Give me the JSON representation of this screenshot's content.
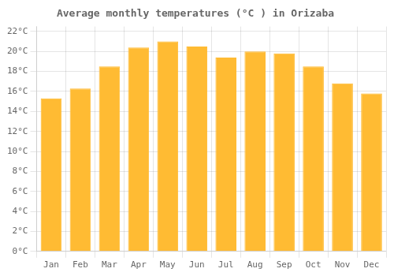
{
  "chart_data": {
    "type": "bar",
    "title": "Average monthly temperatures (°C ) in Orizaba",
    "categories": [
      "Jan",
      "Feb",
      "Mar",
      "Apr",
      "May",
      "Jun",
      "Jul",
      "Aug",
      "Sep",
      "Oct",
      "Nov",
      "Dec"
    ],
    "values": [
      15.3,
      16.3,
      18.5,
      20.4,
      21.0,
      20.5,
      19.4,
      20.0,
      19.8,
      18.5,
      16.8,
      15.8
    ],
    "color": "#FFBB33",
    "ylim": [
      0,
      22.5
    ],
    "yticks": [
      {
        "value": 0,
        "label": "0°C"
      },
      {
        "value": 2,
        "label": "2°C"
      },
      {
        "value": 4,
        "label": "4°C"
      },
      {
        "value": 6,
        "label": "6°C"
      },
      {
        "value": 8,
        "label": "8°C"
      },
      {
        "value": 10,
        "label": "10°C"
      },
      {
        "value": 12,
        "label": "12°C"
      },
      {
        "value": 14,
        "label": "14°C"
      },
      {
        "value": 16,
        "label": "16°C"
      },
      {
        "value": 18,
        "label": "18°C"
      },
      {
        "value": 20,
        "label": "20°C"
      },
      {
        "value": 22,
        "label": "22°C"
      }
    ],
    "grid": true
  }
}
